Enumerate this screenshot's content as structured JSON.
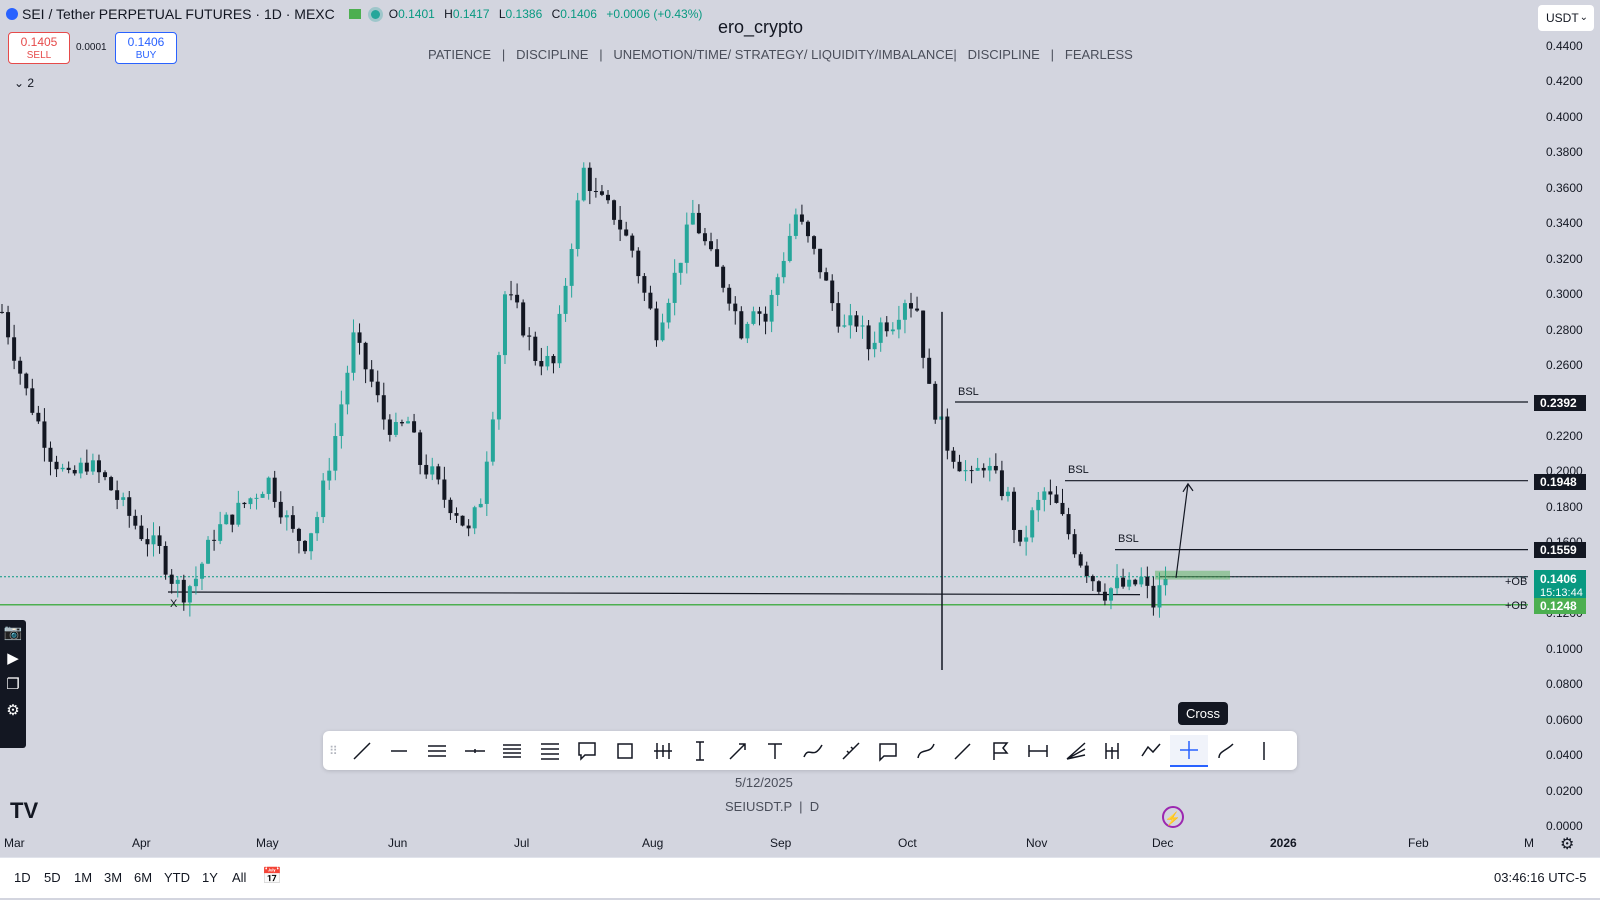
{
  "header": {
    "symbol_title": "SEI / Tether PERPETUAL FUTURES · 1D · MEXC",
    "ohlc": [
      {
        "k": "O",
        "v": "0.1401"
      },
      {
        "k": "H",
        "v": "0.1417"
      },
      {
        "k": "L",
        "v": "0.1386"
      },
      {
        "k": "C",
        "v": "0.1406"
      }
    ],
    "change": "+0.0006 (+0.43%)",
    "sell_price": "0.1405",
    "sell_label": "SELL",
    "spread": "0.0001",
    "buy_price": "0.1406",
    "buy_label": "BUY",
    "collapse_count": "2",
    "currency": "USDT"
  },
  "watermark": "ero_crypto",
  "motto": "PATIENCE   |   DISCIPLINE   |   UNEMOTION/TIME/ STRATEGY/ LIQUIDITY/IMBALANCE|   DISCIPLINE   |   FEARLESS",
  "chart_data": {
    "type": "candlestick",
    "symbol": "SEIUSDT.P",
    "interval": "D",
    "y_ticks": [
      "0.4400",
      "0.4200",
      "0.4000",
      "0.3800",
      "0.3600",
      "0.3400",
      "0.3200",
      "0.3000",
      "0.2800",
      "0.2600",
      "0.2400",
      "0.2200",
      "0.2000",
      "0.1800",
      "0.1600",
      "0.1400",
      "0.1200",
      "0.1000",
      "0.0800",
      "0.0600",
      "0.0400",
      "0.0200",
      "0.0000"
    ],
    "ylim": [
      0,
      0.44
    ],
    "x_ticks": [
      "Mar",
      "Apr",
      "May",
      "Jun",
      "Jul",
      "Aug",
      "Sep",
      "Oct",
      "Nov",
      "Dec",
      "2026",
      "Feb",
      "M"
    ],
    "path_points": [
      [
        0,
        0.29
      ],
      [
        4,
        0.245
      ],
      [
        8,
        0.21
      ],
      [
        11,
        0.195
      ],
      [
        14,
        0.205
      ],
      [
        17,
        0.195
      ],
      [
        20,
        0.18
      ],
      [
        23,
        0.165
      ],
      [
        26,
        0.155
      ],
      [
        28,
        0.14
      ],
      [
        30,
        0.132
      ],
      [
        32,
        0.14
      ],
      [
        35,
        0.165
      ],
      [
        38,
        0.175
      ],
      [
        41,
        0.185
      ],
      [
        44,
        0.195
      ],
      [
        46,
        0.18
      ],
      [
        48,
        0.165
      ],
      [
        50,
        0.16
      ],
      [
        52,
        0.175
      ],
      [
        55,
        0.22
      ],
      [
        58,
        0.275
      ],
      [
        61,
        0.25
      ],
      [
        63,
        0.23
      ],
      [
        65,
        0.222
      ],
      [
        67,
        0.228
      ],
      [
        69,
        0.205
      ],
      [
        71,
        0.198
      ],
      [
        73,
        0.185
      ],
      [
        75,
        0.178
      ],
      [
        77,
        0.165
      ],
      [
        79,
        0.185
      ],
      [
        81,
        0.235
      ],
      [
        83,
        0.3
      ],
      [
        85,
        0.29
      ],
      [
        88,
        0.265
      ],
      [
        91,
        0.26
      ],
      [
        94,
        0.33
      ],
      [
        96,
        0.37
      ],
      [
        98,
        0.355
      ],
      [
        101,
        0.345
      ],
      [
        104,
        0.325
      ],
      [
        106,
        0.3
      ],
      [
        108,
        0.28
      ],
      [
        111,
        0.31
      ],
      [
        114,
        0.345
      ],
      [
        117,
        0.32
      ],
      [
        120,
        0.3
      ],
      [
        122,
        0.28
      ],
      [
        124,
        0.295
      ],
      [
        126,
        0.285
      ],
      [
        128,
        0.31
      ],
      [
        131,
        0.345
      ],
      [
        133,
        0.33
      ],
      [
        135,
        0.315
      ],
      [
        137,
        0.295
      ],
      [
        139,
        0.28
      ],
      [
        141,
        0.285
      ],
      [
        143,
        0.27
      ],
      [
        145,
        0.283
      ],
      [
        147,
        0.285
      ],
      [
        149,
        0.298
      ],
      [
        151,
        0.292
      ],
      [
        153,
        0.245
      ],
      [
        156,
        0.215
      ],
      [
        158,
        0.205
      ],
      [
        160,
        0.195
      ],
      [
        162,
        0.205
      ],
      [
        164,
        0.195
      ],
      [
        166,
        0.185
      ],
      [
        168,
        0.155
      ],
      [
        170,
        0.175
      ],
      [
        172,
        0.188
      ],
      [
        174,
        0.18
      ],
      [
        176,
        0.165
      ],
      [
        178,
        0.15
      ],
      [
        180,
        0.14
      ],
      [
        182,
        0.132
      ],
      [
        184,
        0.136
      ],
      [
        186,
        0.134
      ],
      [
        188,
        0.139
      ],
      [
        190,
        0.125
      ],
      [
        192,
        0.1406
      ]
    ],
    "annotations": [
      {
        "type": "horizontal-level",
        "label": "BSL",
        "value": "0.2392"
      },
      {
        "type": "horizontal-level",
        "label": "BSL",
        "value": "0.1948"
      },
      {
        "type": "horizontal-level",
        "label": "BSL",
        "value": "0.1559"
      },
      {
        "type": "order-block",
        "label": "+OB",
        "value": "0.1406"
      },
      {
        "type": "order-block",
        "label": "+OB",
        "value": "0.1248"
      },
      {
        "type": "marker",
        "label": "X"
      }
    ],
    "last_price": "0.1406",
    "countdown": "15:13:44",
    "colors": {
      "up": "#26a69a",
      "down": "#131722",
      "ob": "#4caf50",
      "last": "#089981",
      "levels": "#131722"
    }
  },
  "footer": {
    "date_label": "5/12/2025",
    "symbol_info": "SEIUSDT.P  |  D",
    "timeframes": [
      "1D",
      "5D",
      "1M",
      "3M",
      "6M",
      "YTD",
      "1Y",
      "All"
    ],
    "clock": "03:46:16 UTC-5"
  },
  "toolbar": {
    "tools": [
      "trend-line",
      "horizontal-ray",
      "parallel-channel",
      "horizontal-line",
      "fib-retracement",
      "fib-channel",
      "callout",
      "rectangle",
      "long-position",
      "measure",
      "arrow",
      "text",
      "path",
      "ruler-line",
      "comment",
      "curve",
      "pen",
      "flag",
      "date-range",
      "fib-fan",
      "pitchfork",
      "polyline",
      "cross",
      "brush",
      "vertical-line"
    ],
    "tooltip": "Cross"
  },
  "left_toolbar": {
    "icons": [
      "screenshot-icon",
      "video-icon",
      "layers-icon",
      "settings-icon"
    ]
  }
}
